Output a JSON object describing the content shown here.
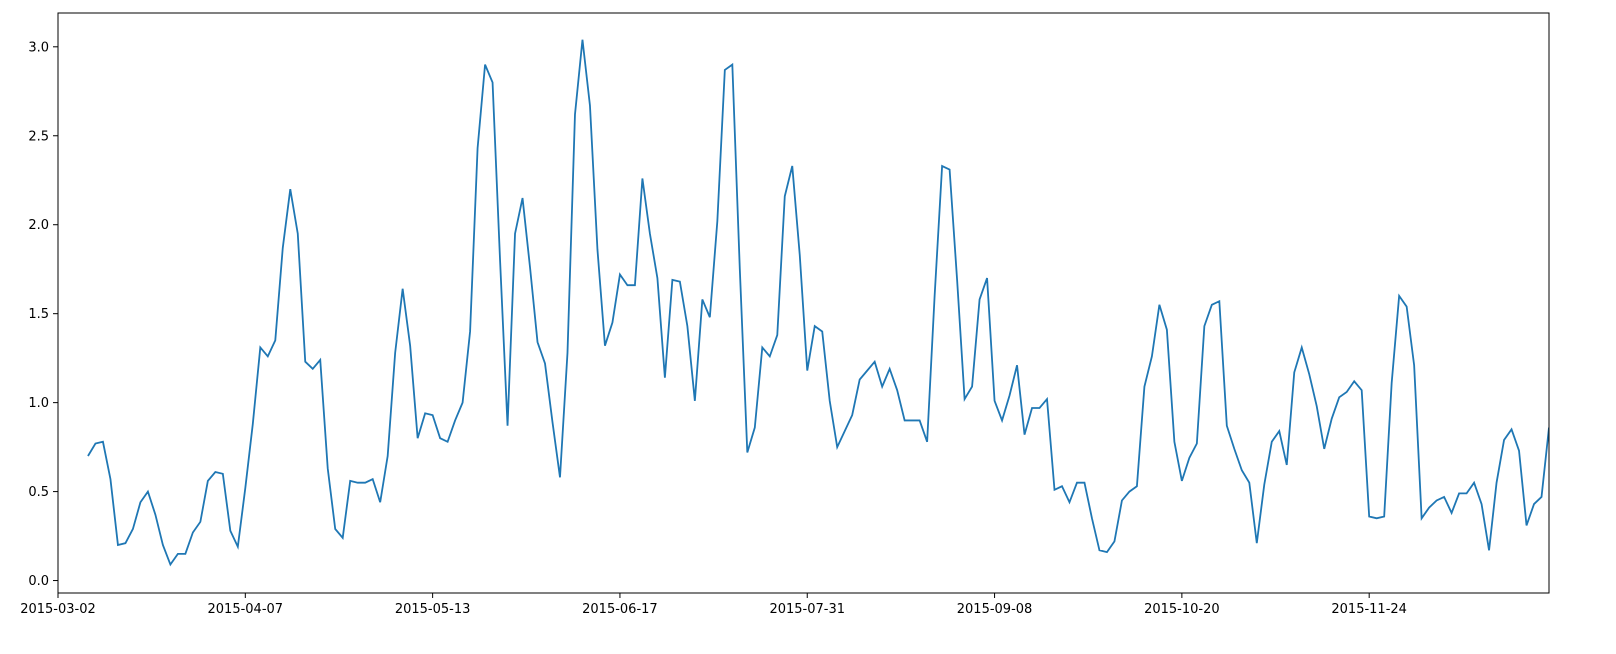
{
  "chart_data": {
    "type": "line",
    "color": "#1f77b4",
    "categories": [
      "2015-03-02",
      null,
      null,
      null,
      null,
      null,
      null,
      null,
      null,
      null,
      null,
      null,
      null,
      null,
      null,
      null,
      null,
      null,
      null,
      null,
      null,
      null,
      null,
      null,
      null,
      "2015-04-07",
      null,
      null,
      null,
      null,
      null,
      null,
      null,
      null,
      null,
      null,
      null,
      null,
      null,
      null,
      null,
      null,
      null,
      null,
      null,
      null,
      null,
      null,
      null,
      null,
      "2015-05-13",
      null,
      null,
      null,
      null,
      null,
      null,
      null,
      null,
      null,
      null,
      null,
      null,
      null,
      null,
      null,
      null,
      null,
      null,
      null,
      null,
      null,
      null,
      null,
      null,
      "2015-06-17",
      null,
      null,
      null,
      null,
      null,
      null,
      null,
      null,
      null,
      null,
      null,
      null,
      null,
      null,
      null,
      null,
      null,
      null,
      null,
      null,
      null,
      null,
      null,
      null,
      "2015-07-31",
      null,
      null,
      null,
      null,
      null,
      null,
      null,
      null,
      null,
      null,
      null,
      null,
      null,
      null,
      null,
      null,
      null,
      null,
      null,
      null,
      null,
      null,
      null,
      null,
      "2015-09-08",
      null,
      null,
      null,
      null,
      null,
      null,
      null,
      null,
      null,
      null,
      null,
      null,
      null,
      null,
      null,
      null,
      null,
      null,
      null,
      null,
      null,
      null,
      null,
      null,
      "2015-10-20",
      null,
      null,
      null,
      null,
      null,
      null,
      null,
      null,
      null,
      null,
      null,
      null,
      null,
      null,
      null,
      null,
      null,
      null,
      null,
      null,
      null,
      null,
      null,
      null,
      "2015-11-24",
      null,
      null,
      null,
      null,
      null,
      null,
      null,
      null,
      null,
      null,
      null,
      null,
      null,
      null,
      null,
      null,
      null,
      null,
      null,
      null,
      null,
      null,
      null,
      null
    ],
    "values": [
      null,
      null,
      null,
      null,
      0.7,
      0.77,
      0.78,
      0.57,
      0.2,
      0.21,
      0.29,
      0.44,
      0.5,
      0.37,
      0.2,
      0.09,
      0.15,
      0.15,
      0.27,
      0.33,
      0.56,
      0.61,
      0.6,
      0.28,
      0.19,
      0.52,
      0.88,
      1.31,
      1.26,
      1.35,
      1.87,
      2.2,
      1.95,
      1.23,
      1.19,
      1.24,
      0.63,
      0.29,
      0.24,
      0.56,
      0.55,
      0.55,
      0.57,
      0.44,
      0.7,
      1.28,
      1.64,
      1.32,
      0.8,
      0.94,
      0.93,
      0.8,
      0.78,
      0.9,
      1.0,
      1.4,
      2.43,
      2.9,
      2.8,
      1.8,
      0.87,
      1.95,
      2.15,
      1.76,
      1.34,
      1.22,
      0.89,
      0.58,
      1.28,
      2.62,
      3.04,
      2.67,
      1.86,
      1.32,
      1.45,
      1.72,
      1.66,
      1.66,
      2.26,
      1.95,
      1.7,
      1.14,
      1.69,
      1.68,
      1.43,
      1.01,
      1.58,
      1.48,
      2.02,
      2.87,
      2.9,
      1.75,
      0.72,
      0.86,
      1.31,
      1.26,
      1.38,
      2.16,
      2.33,
      1.83,
      1.18,
      1.43,
      1.4,
      1.01,
      0.75,
      0.84,
      0.93,
      1.13,
      1.18,
      1.23,
      1.09,
      1.19,
      1.07,
      0.9,
      0.9,
      0.9,
      0.78,
      1.6,
      2.33,
      2.31,
      1.69,
      1.02,
      1.09,
      1.58,
      1.7,
      1.01,
      0.9,
      1.04,
      1.21,
      0.82,
      0.97,
      0.97,
      1.02,
      0.51,
      0.53,
      0.44,
      0.55,
      0.55,
      0.35,
      0.17,
      0.16,
      0.22,
      0.45,
      0.5,
      0.53,
      1.09,
      1.26,
      1.55,
      1.41,
      0.78,
      0.56,
      0.69,
      0.77,
      1.43,
      1.55,
      1.57,
      0.87,
      0.74,
      0.62,
      0.55,
      0.21,
      0.54,
      0.78,
      0.84,
      0.65,
      1.17,
      1.31,
      1.16,
      0.98,
      0.74,
      0.91,
      1.03,
      1.06,
      1.12,
      1.07,
      0.36,
      0.35,
      0.36,
      1.11,
      1.6,
      1.54,
      1.21,
      0.35,
      0.41,
      0.45,
      0.47,
      0.38,
      0.49,
      0.49,
      0.55,
      0.43,
      0.17,
      0.55,
      0.79,
      0.85,
      0.73,
      0.31,
      0.43,
      0.47,
      0.86
    ],
    "ylim": [
      -0.07,
      3.19
    ],
    "yticks": [
      {
        "value": 0,
        "label": "0.0"
      },
      0.5,
      {
        "value": 1,
        "label": "1.0"
      },
      1.5,
      {
        "value": 2,
        "label": "2.0"
      },
      2.5,
      {
        "value": 3,
        "label": "3.0"
      }
    ],
    "grid": false
  }
}
